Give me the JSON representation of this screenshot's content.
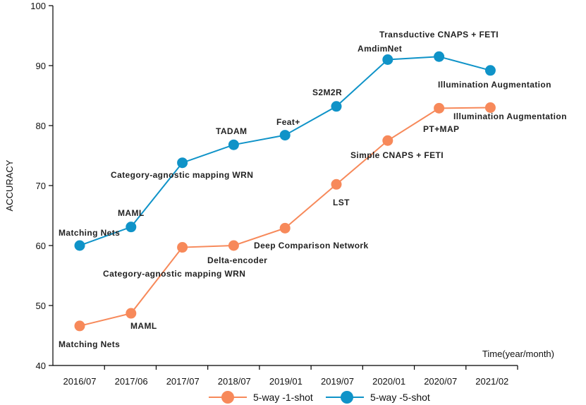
{
  "chart_data": {
    "type": "line",
    "title": "",
    "xlabel": "Time(year/month)",
    "ylabel": "ACCURACY",
    "ylim": [
      40,
      100
    ],
    "yticks": [
      40,
      50,
      60,
      70,
      80,
      90,
      100
    ],
    "categories": [
      "2016/07",
      "2017/06",
      "2017/07",
      "2018/07",
      "2019/01",
      "2019/07",
      "2020/01",
      "2020/07",
      "2021/02"
    ],
    "grid": false,
    "legend": "bottom",
    "series": [
      {
        "name": "5-way -1-shot",
        "color": "#f7895a",
        "values": [
          46.6,
          48.7,
          59.7,
          60.0,
          62.9,
          70.2,
          77.5,
          82.9,
          83.0
        ],
        "labels": [
          "Matching Nets",
          "MAML",
          "Category-agnostic mapping WRN",
          "Delta-encoder",
          "Deep Comparison Network",
          "LST",
          "Simple CNAPS + FETI",
          "PT+MAP",
          "Illumination Augmentation"
        ]
      },
      {
        "name": "5-way -5-shot",
        "color": "#0f93c8",
        "values": [
          60.0,
          63.1,
          73.8,
          76.8,
          78.4,
          83.2,
          91.0,
          91.5,
          89.2
        ],
        "labels": [
          "Matching Nets",
          "MAML",
          "Category-agnostic mapping WRN",
          "TADAM",
          "Feat+",
          "S2M2R",
          "AmdimNet",
          "Transductive CNAPS + FETI",
          "Illumination Augmentation"
        ]
      }
    ]
  }
}
